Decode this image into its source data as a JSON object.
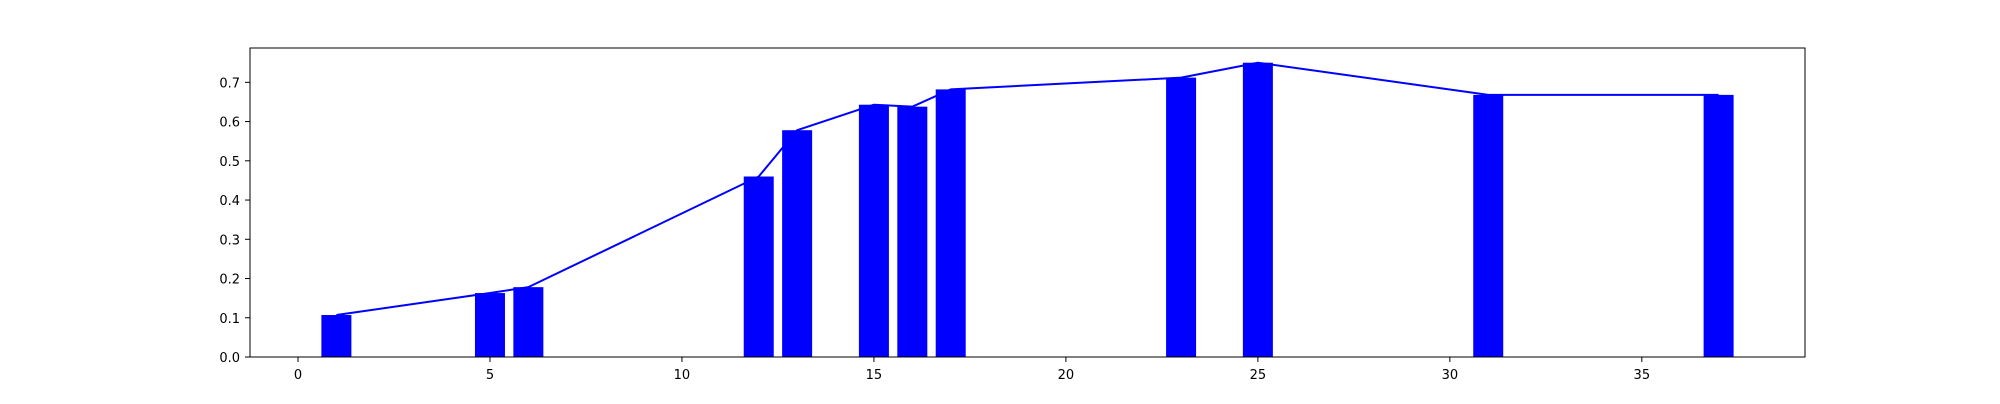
{
  "chart_data": {
    "type": "bar",
    "title": "",
    "xlabel": "",
    "ylabel": "",
    "xlim": [
      -1.25,
      39.25
    ],
    "ylim": [
      0,
      0.7875
    ],
    "grid": false,
    "legend": "none",
    "x_ticks": [
      0,
      5,
      10,
      15,
      20,
      25,
      30,
      35
    ],
    "x_tick_labels": [
      "0",
      "5",
      "10",
      "15",
      "20",
      "25",
      "30",
      "35"
    ],
    "y_ticks": [
      0.0,
      0.1,
      0.2,
      0.3,
      0.4,
      0.5,
      0.6,
      0.7
    ],
    "y_tick_labels": [
      "0.0",
      "0.1",
      "0.2",
      "0.3",
      "0.4",
      "0.5",
      "0.6",
      "0.7"
    ],
    "x": [
      1,
      5,
      6,
      12,
      13,
      15,
      16,
      17,
      23,
      25,
      31,
      37
    ],
    "values": [
      0.107,
      0.163,
      0.178,
      0.46,
      0.578,
      0.643,
      0.638,
      0.682,
      0.712,
      0.75,
      0.668,
      0.668
    ],
    "line_values": [
      0.107,
      0.163,
      0.178,
      0.46,
      0.578,
      0.643,
      0.638,
      0.682,
      0.712,
      0.75,
      0.668,
      0.668
    ],
    "bar_color": "#0000ff",
    "line_color": "#0000ff"
  }
}
